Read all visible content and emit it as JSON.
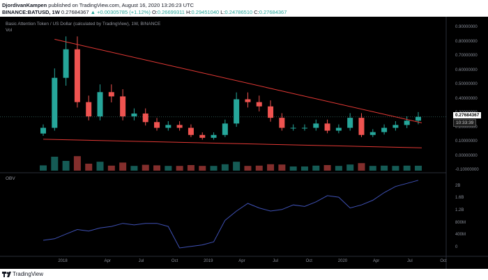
{
  "header": {
    "author": "DjordivanKampen",
    "published_text": " published on TradingView.com, August 16, 2020 13:26:23 UTC",
    "symbol_line": {
      "symbol": "BINANCE:BATUSD, 1W",
      "last": "0.27684367",
      "change": "+0.00305785 (+1.12%)",
      "o_label": "O:",
      "o": "0.26699311",
      "h_label": "H:",
      "h": "0.29451040",
      "l_label": "L:",
      "l": "0.24786510",
      "c_label": "C:",
      "c": "0.27684367"
    }
  },
  "chart": {
    "title": "Basic Attention Token / US Dollar (calculated by TradingView), 1W, BINANCE",
    "vol_label": "Vol",
    "obv_label": "OBV",
    "price_axis": [
      "0.90000000",
      "0.80000000",
      "0.70000000",
      "0.60000000",
      "0.50000000",
      "0.40000000",
      "0.30000000",
      "0.20000000",
      "0.10000000",
      "0.00000000",
      "-0.10000000"
    ],
    "obv_axis": [
      "2B",
      "1.6B",
      "1.2B",
      "800M",
      "400M",
      "0"
    ],
    "time_axis": [
      "2018",
      "Apr",
      "Jul",
      "Oct",
      "2019",
      "Apr",
      "Jul",
      "Oct",
      "2020",
      "Apr",
      "Jul",
      "Oct"
    ],
    "price_tag": "0.27684367",
    "time_tag": "10:33:39",
    "colors": {
      "up": "#26a69a",
      "down": "#ef5350",
      "trendline": "#e53935",
      "obv": "#3f51b5",
      "background": "#000000"
    }
  },
  "footer": {
    "brand": "TradingView",
    "logo_icon": "tradingview-logo-icon"
  },
  "chart_data": {
    "type": "candlestick",
    "title": "Basic Attention Token / US Dollar (calculated by TradingView), 1W, BINANCE",
    "x": [
      "2017-11",
      "2017-12",
      "2018-01",
      "2018-02",
      "2018-03",
      "2018-04",
      "2018-05",
      "2018-06",
      "2018-07",
      "2018-08",
      "2018-09",
      "2018-10",
      "2018-11",
      "2018-12",
      "2019-01",
      "2019-02",
      "2019-03",
      "2019-04",
      "2019-05",
      "2019-06",
      "2019-07",
      "2019-08",
      "2019-09",
      "2019-10",
      "2019-11",
      "2019-12",
      "2020-01",
      "2020-02",
      "2020-03",
      "2020-04",
      "2020-05",
      "2020-06",
      "2020-07",
      "2020-08"
    ],
    "close": [
      0.2,
      0.55,
      0.75,
      0.38,
      0.28,
      0.45,
      0.42,
      0.28,
      0.3,
      0.24,
      0.2,
      0.22,
      0.2,
      0.15,
      0.13,
      0.15,
      0.23,
      0.4,
      0.38,
      0.35,
      0.27,
      0.2,
      0.2,
      0.2,
      0.23,
      0.18,
      0.2,
      0.27,
      0.15,
      0.17,
      0.2,
      0.22,
      0.25,
      0.277
    ],
    "series": [
      {
        "name": "Vol"
      },
      {
        "name": "OBV"
      }
    ],
    "obv_billion": [
      0.25,
      0.3,
      0.45,
      0.6,
      0.55,
      0.65,
      0.7,
      0.8,
      0.75,
      0.8,
      0.8,
      0.7,
      0.0,
      0.05,
      0.1,
      0.2,
      0.9,
      1.2,
      1.45,
      1.3,
      1.2,
      1.25,
      1.4,
      1.35,
      1.5,
      1.7,
      1.65,
      1.3,
      1.4,
      1.55,
      1.8,
      2.0,
      2.1,
      2.2
    ],
    "price_ylim": [
      -0.1,
      0.9
    ],
    "last_price": 0.27684367,
    "trendlines": [
      {
        "from": {
          "x": "2017-12",
          "y": 0.82
        },
        "to": {
          "x": "2020-08",
          "y": 0.235
        }
      },
      {
        "from": {
          "x": "2017-11",
          "y": 0.12
        },
        "to": {
          "x": "2020-08",
          "y": 0.06
        }
      }
    ]
  }
}
